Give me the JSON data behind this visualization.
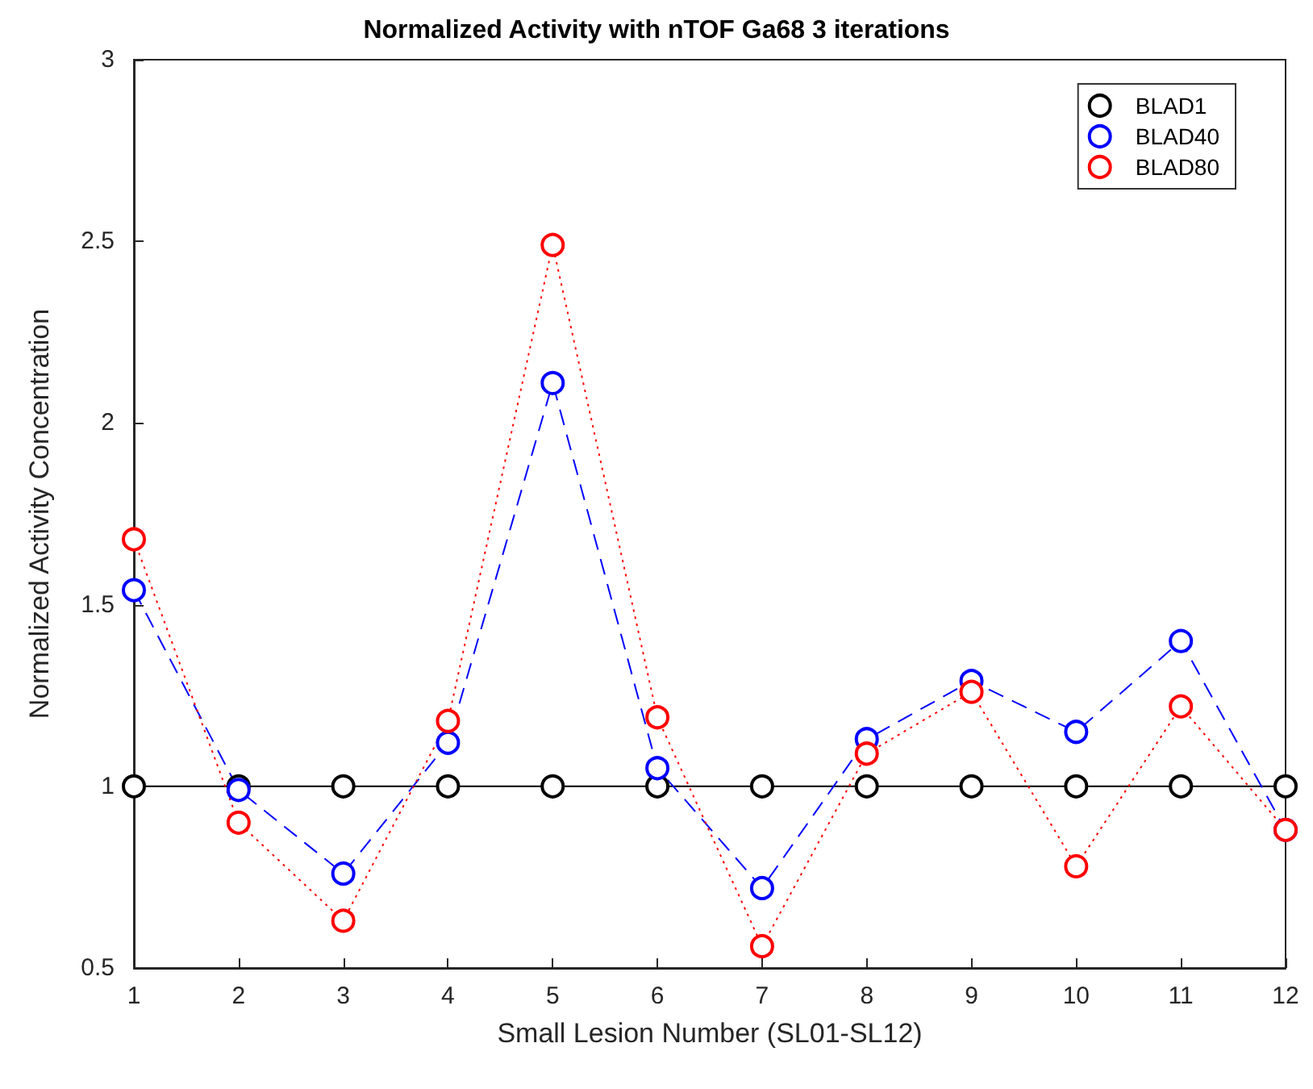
{
  "chart_data": {
    "type": "line",
    "title": "Normalized Activity with nTOF Ga68 3 iterations",
    "xlabel": "Small Lesion Number (SL01-SL12)",
    "ylabel": "Normalized Activity Concentration",
    "x": [
      1,
      2,
      3,
      4,
      5,
      6,
      7,
      8,
      9,
      10,
      11,
      12
    ],
    "xlim": [
      1,
      12
    ],
    "xticks": [
      1,
      2,
      3,
      4,
      5,
      6,
      7,
      8,
      9,
      10,
      11,
      12
    ],
    "ylim": [
      0.5,
      3
    ],
    "yticks": [
      0.5,
      1,
      1.5,
      2,
      2.5,
      3
    ],
    "grid": false,
    "legend": "top right",
    "marker": "circle",
    "series": [
      {
        "name": "BLAD1",
        "color": "#000000",
        "line_style": "solid",
        "values": [
          1,
          1,
          1,
          1,
          1,
          1,
          1,
          1,
          1,
          1,
          1,
          1
        ]
      },
      {
        "name": "BLAD40",
        "color": "#0000ff",
        "line_style": "dashed",
        "values": [
          1.54,
          0.99,
          0.76,
          1.12,
          2.11,
          1.05,
          0.72,
          1.13,
          1.29,
          1.15,
          1.4,
          0.88
        ]
      },
      {
        "name": "BLAD80",
        "color": "#ff0000",
        "line_style": "dotted",
        "values": [
          1.68,
          0.9,
          0.63,
          1.18,
          2.49,
          1.19,
          0.56,
          1.09,
          1.26,
          0.78,
          1.22,
          0.88
        ]
      }
    ]
  }
}
